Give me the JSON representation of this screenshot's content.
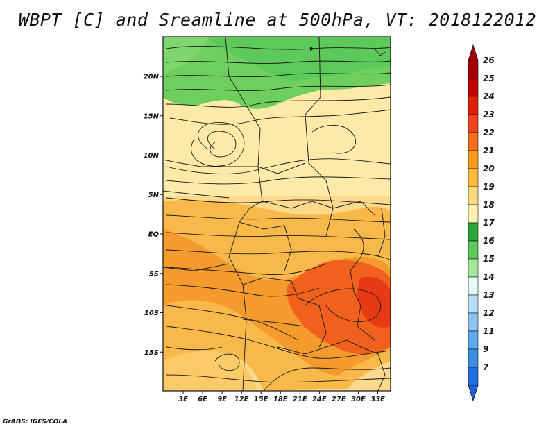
{
  "title": "WBPT [C] and Sreamline at 500hPa, VT: 2018122012",
  "credit": "GrADS: IGES/COLA",
  "map": {
    "lat_labels": [
      {
        "lat": 20,
        "label": "20N"
      },
      {
        "lat": 15,
        "label": "15N"
      },
      {
        "lat": 10,
        "label": "10N"
      },
      {
        "lat": 5,
        "label": "5N"
      },
      {
        "lat": 0,
        "label": "EQ"
      },
      {
        "lat": -5,
        "label": "5S"
      },
      {
        "lat": -10,
        "label": "10S"
      },
      {
        "lat": -15,
        "label": "15S"
      }
    ],
    "lon_labels": [
      {
        "lon": 3,
        "label": "3E"
      },
      {
        "lon": 6,
        "label": "6E"
      },
      {
        "lon": 9,
        "label": "9E"
      },
      {
        "lon": 12,
        "label": "12E"
      },
      {
        "lon": 15,
        "label": "15E"
      },
      {
        "lon": 18,
        "label": "18E"
      },
      {
        "lon": 21,
        "label": "21E"
      },
      {
        "lon": 24,
        "label": "24E"
      },
      {
        "lon": 27,
        "label": "27E"
      },
      {
        "lon": 30,
        "label": "30E"
      },
      {
        "lon": 33,
        "label": "33E"
      }
    ]
  },
  "colorbar": {
    "levels": [
      {
        "label": "26",
        "color": "#a50000"
      },
      {
        "label": "25",
        "color": "#c20000"
      },
      {
        "label": "24",
        "color": "#e1200c"
      },
      {
        "label": "23",
        "color": "#f1441c"
      },
      {
        "label": "22",
        "color": "#f56e1c"
      },
      {
        "label": "21",
        "color": "#f89a1c"
      },
      {
        "label": "20",
        "color": "#fcbb3c"
      },
      {
        "label": "19",
        "color": "#fdd97e"
      },
      {
        "label": "18",
        "color": "#fef1b0"
      },
      {
        "label": "17",
        "color": "#2ca53a"
      },
      {
        "label": "16",
        "color": "#5cc95a"
      },
      {
        "label": "15",
        "color": "#a6e89a"
      },
      {
        "label": "14",
        "color": "#e6fbf6"
      },
      {
        "label": "13",
        "color": "#b4dcf6"
      },
      {
        "label": "12",
        "color": "#8cc4f1"
      },
      {
        "label": "11",
        "color": "#5ea9ec"
      },
      {
        "label": "9",
        "color": "#3c8ce4"
      },
      {
        "label": "7",
        "color": "#1e6ede"
      }
    ],
    "under_color": "#1e5fd8"
  }
}
